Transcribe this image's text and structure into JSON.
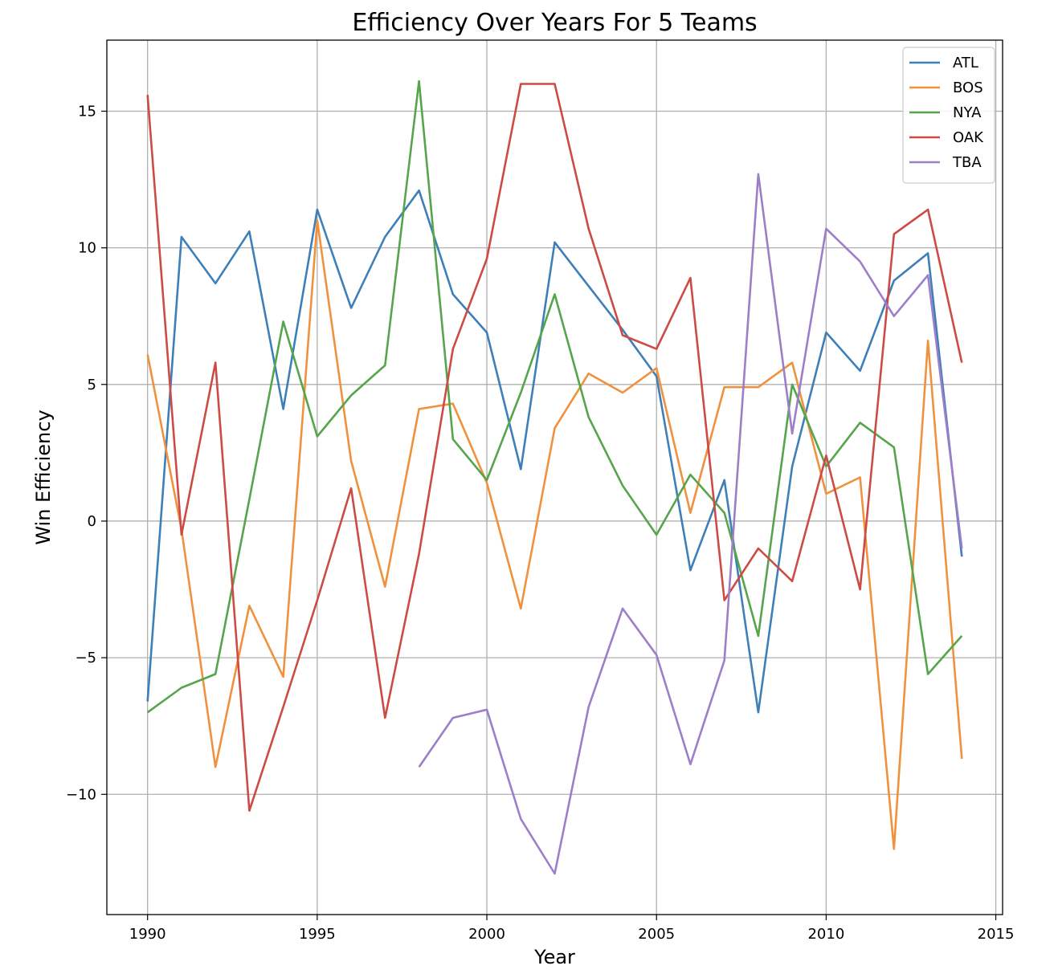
{
  "chart_data": {
    "type": "line",
    "title": "Efficiency Over Years For 5 Teams",
    "xlabel": "Year",
    "ylabel": "Win Efficiency",
    "xlim": [
      1988.8,
      2015.2
    ],
    "ylim": [
      -14.4,
      17.6
    ],
    "xticks": [
      1990,
      1995,
      2000,
      2005,
      2010,
      2015
    ],
    "yticks": [
      -10,
      -5,
      0,
      5,
      10,
      15
    ],
    "ytick_labels": [
      "−10",
      "−5",
      "0",
      "5",
      "10",
      "15"
    ],
    "grid": true,
    "legend_position": "top-right",
    "series": [
      {
        "name": "ATL",
        "color": "#3d7fb9",
        "x": [
          1990,
          1991,
          1992,
          1993,
          1994,
          1995,
          1996,
          1997,
          1998,
          1999,
          2000,
          2001,
          2002,
          2003,
          2004,
          2005,
          2006,
          2007,
          2008,
          2009,
          2010,
          2011,
          2012,
          2013,
          2014
        ],
        "values": [
          -6.6,
          10.4,
          8.7,
          10.6,
          4.1,
          11.4,
          7.8,
          10.4,
          12.1,
          8.3,
          6.9,
          1.9,
          10.2,
          8.6,
          7.0,
          5.3,
          -1.8,
          1.5,
          -7.0,
          2.0,
          6.9,
          5.5,
          8.8,
          9.8,
          -1.3
        ]
      },
      {
        "name": "BOS",
        "color": "#f0913e",
        "x": [
          1990,
          1991,
          1992,
          1993,
          1994,
          1995,
          1996,
          1997,
          1998,
          1999,
          2000,
          2001,
          2002,
          2003,
          2004,
          2005,
          2006,
          2007,
          2008,
          2009,
          2010,
          2011,
          2012,
          2013,
          2014
        ],
        "values": [
          6.1,
          -0.3,
          -9.0,
          -3.1,
          -5.7,
          11.0,
          2.2,
          -2.4,
          4.1,
          4.3,
          1.4,
          -3.2,
          3.4,
          5.4,
          4.7,
          5.6,
          0.3,
          4.9,
          4.9,
          5.8,
          1.0,
          1.6,
          -12.0,
          6.6,
          -8.7
        ]
      },
      {
        "name": "NYA",
        "color": "#56a44c",
        "x": [
          1990,
          1991,
          1992,
          1993,
          1994,
          1995,
          1996,
          1997,
          1998,
          1999,
          2000,
          2001,
          2002,
          2003,
          2004,
          2005,
          2006,
          2007,
          2008,
          2009,
          2010,
          2011,
          2012,
          2013,
          2014
        ],
        "values": [
          -7.0,
          -6.1,
          -5.6,
          0.8,
          7.3,
          3.1,
          4.6,
          5.7,
          16.1,
          3.0,
          1.5,
          4.7,
          8.3,
          3.8,
          1.3,
          -0.5,
          1.7,
          0.3,
          -4.2,
          5.0,
          2.0,
          3.6,
          2.7,
          -5.6,
          -4.2
        ]
      },
      {
        "name": "OAK",
        "color": "#cc4b45",
        "x": [
          1990,
          1991,
          1992,
          1993,
          1994,
          1995,
          1996,
          1997,
          1998,
          1999,
          2000,
          2001,
          2002,
          2003,
          2004,
          2005,
          2006,
          2007,
          2008,
          2009,
          2010,
          2011,
          2012,
          2013,
          2014
        ],
        "values": [
          15.6,
          -0.5,
          5.8,
          -10.6,
          -6.8,
          -2.9,
          1.2,
          -7.2,
          -1.2,
          6.3,
          9.6,
          16.0,
          16.0,
          10.7,
          6.8,
          6.3,
          8.9,
          -2.9,
          -1.0,
          -2.2,
          2.4,
          -2.5,
          10.5,
          11.4,
          5.8
        ]
      },
      {
        "name": "TBA",
        "color": "#9d7ec8",
        "x": [
          1998,
          1999,
          2000,
          2001,
          2002,
          2003,
          2004,
          2005,
          2006,
          2007,
          2008,
          2009,
          2010,
          2011,
          2012,
          2013,
          2014
        ],
        "values": [
          -9.0,
          -7.2,
          -6.9,
          -10.9,
          -12.9,
          -6.8,
          -3.2,
          -4.9,
          -8.9,
          -5.1,
          12.7,
          3.2,
          10.7,
          9.5,
          7.5,
          9.0,
          -1.0
        ]
      }
    ]
  }
}
